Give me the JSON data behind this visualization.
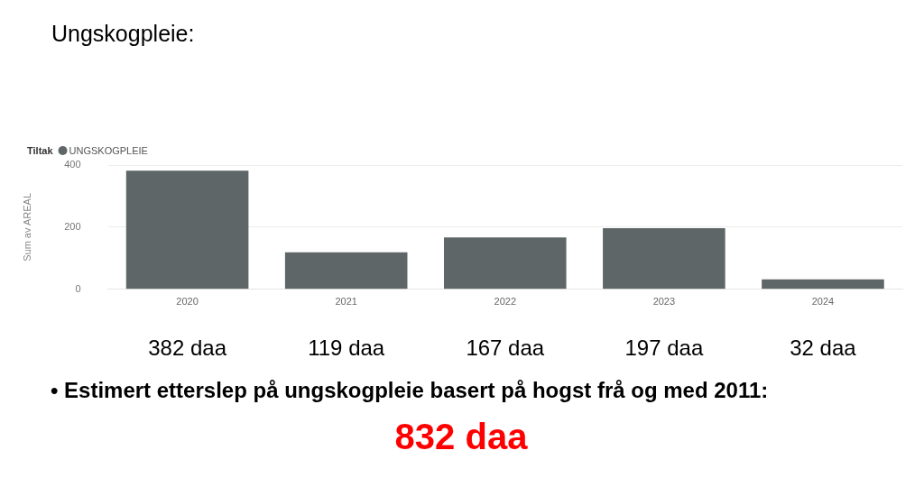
{
  "chart_data": {
    "type": "bar",
    "title": "Ungskogpleie:",
    "legend_title": "Tiltak",
    "ylabel": "Sum av AREAL",
    "categories": [
      "2020",
      "2021",
      "2022",
      "2023",
      "2024"
    ],
    "series": [
      {
        "name": "UNGSKOGPLEIE",
        "color": "#5f6668",
        "values": [
          382,
          119,
          167,
          197,
          32
        ],
        "value_labels": [
          "382 daa",
          "119 daa",
          "167 daa",
          "197 daa",
          "32 daa"
        ]
      }
    ],
    "ylim": [
      0,
      400
    ],
    "yticks": [
      0,
      200,
      400
    ],
    "grid": "y",
    "legend": "top left",
    "annotations": [
      "• Estimert etterslep på ungskogpleie basert på hogst frå og med 2011:",
      "832 daa"
    ]
  }
}
